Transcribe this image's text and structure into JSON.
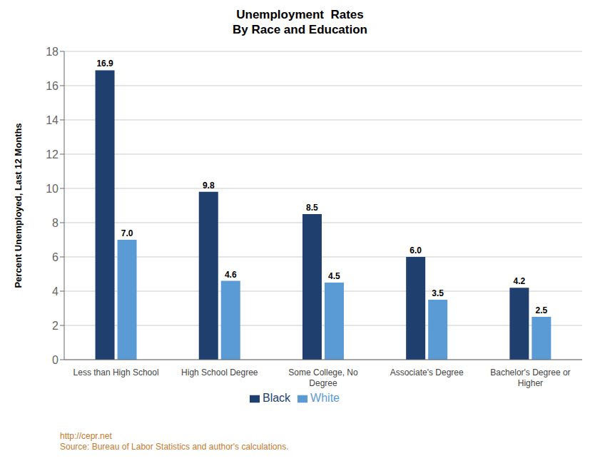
{
  "chart_data": {
    "type": "bar",
    "title": "Unemployment  Rates\nBy Race and Education",
    "y_label": "Percent Unemployed, Last 12 Months",
    "categories": [
      "Less than High School",
      "High School Degree",
      "Some College, No\nDegree",
      "Associate's Degree",
      "Bachelor's Degree or\nHigher"
    ],
    "series": [
      {
        "name": "Black",
        "color": "#1F3F6E",
        "values": [
          16.9,
          9.8,
          8.5,
          6.0,
          4.2
        ],
        "value_labels": [
          "16.9",
          "9.8",
          "8.5",
          "6.0",
          "4.2"
        ]
      },
      {
        "name": "White",
        "color": "#5B9BD5",
        "values": [
          7.0,
          4.6,
          4.5,
          3.5,
          2.5
        ],
        "value_labels": [
          "7.0",
          "4.6",
          "4.5",
          "3.5",
          "2.5"
        ]
      }
    ],
    "ylim": [
      0,
      18
    ],
    "yticks": [
      0,
      2,
      4,
      6,
      8,
      10,
      12,
      14,
      16,
      18
    ],
    "grid": true,
    "legend": "bottom",
    "data_labels": true,
    "annotations": [
      {
        "text": "http://cepr.net\nSource: Bureau of Labor Statistics and author's calculations.",
        "color": "#C47A30"
      }
    ]
  }
}
